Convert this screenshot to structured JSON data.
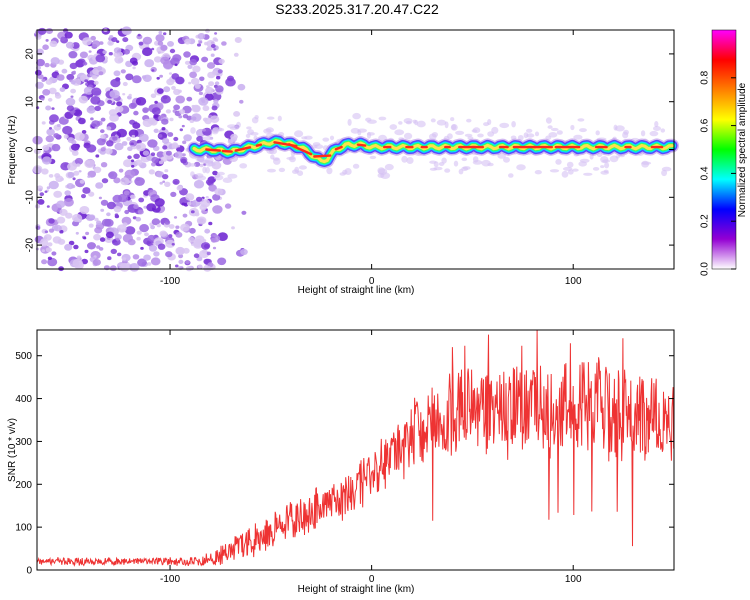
{
  "title": "S233.2025.317.20.47.C22",
  "chart_data": [
    {
      "type": "heatmap",
      "xlabel": "Height of straight line (km)",
      "ylabel": "Frequency (Hz)",
      "xlim": [
        -166,
        150
      ],
      "ylim": [
        -25,
        25
      ],
      "xticks": [
        -100,
        0,
        100
      ],
      "yticks": [
        -20,
        -10,
        0,
        10,
        20
      ],
      "noise_region_x": [
        -166,
        -75
      ],
      "ridge": {
        "x": [
          -88,
          -80,
          -70,
          -60,
          -50,
          -45,
          -40,
          -35,
          -30,
          -25,
          -22,
          -18,
          -12,
          -5,
          0,
          10,
          20,
          40,
          60,
          80,
          100,
          120,
          140,
          150
        ],
        "freq": [
          0,
          0,
          -0.5,
          0.5,
          1.5,
          1.5,
          1,
          0.5,
          -1,
          -2.5,
          -2,
          0,
          1,
          1,
          0.5,
          0.5,
          0.5,
          0.5,
          0.5,
          0.5,
          0.5,
          0.5,
          0.5,
          0.5
        ]
      },
      "colorbar": {
        "label": "Normalized spectral amplitude",
        "range": [
          0,
          1
        ],
        "ticks": [
          "0.0",
          "0.2",
          "0.4",
          "0.6",
          "0.8"
        ],
        "colormap": [
          "#ffffff",
          "#9400d3",
          "#0000ff",
          "#00ffff",
          "#00ff00",
          "#ffff00",
          "#ff7f00",
          "#ff0000",
          "#ff00ff"
        ]
      }
    },
    {
      "type": "line",
      "xlabel": "Height of straight line (km)",
      "ylabel": "SNR (10 * v/v)",
      "xlim": [
        -166,
        150
      ],
      "ylim": [
        0,
        560
      ],
      "xticks": [
        -100,
        0,
        100
      ],
      "yticks": [
        0,
        100,
        200,
        300,
        400,
        500
      ],
      "color": "#ee3333",
      "envelope": {
        "x": [
          -166,
          -120,
          -90,
          -80,
          -70,
          -60,
          -50,
          -40,
          -30,
          -20,
          -10,
          0,
          10,
          20,
          30,
          40,
          50,
          60,
          70,
          80,
          90,
          100,
          110,
          120,
          130,
          140,
          150
        ],
        "mean": [
          20,
          20,
          20,
          25,
          45,
          70,
          90,
          115,
          140,
          160,
          180,
          220,
          270,
          310,
          340,
          360,
          370,
          375,
          375,
          380,
          380,
          375,
          375,
          370,
          360,
          350,
          340
        ],
        "spread": [
          10,
          10,
          12,
          18,
          40,
          45,
          50,
          50,
          55,
          60,
          65,
          70,
          80,
          90,
          100,
          110,
          120,
          130,
          130,
          130,
          130,
          130,
          130,
          130,
          120,
          110,
          100
        ]
      }
    }
  ]
}
